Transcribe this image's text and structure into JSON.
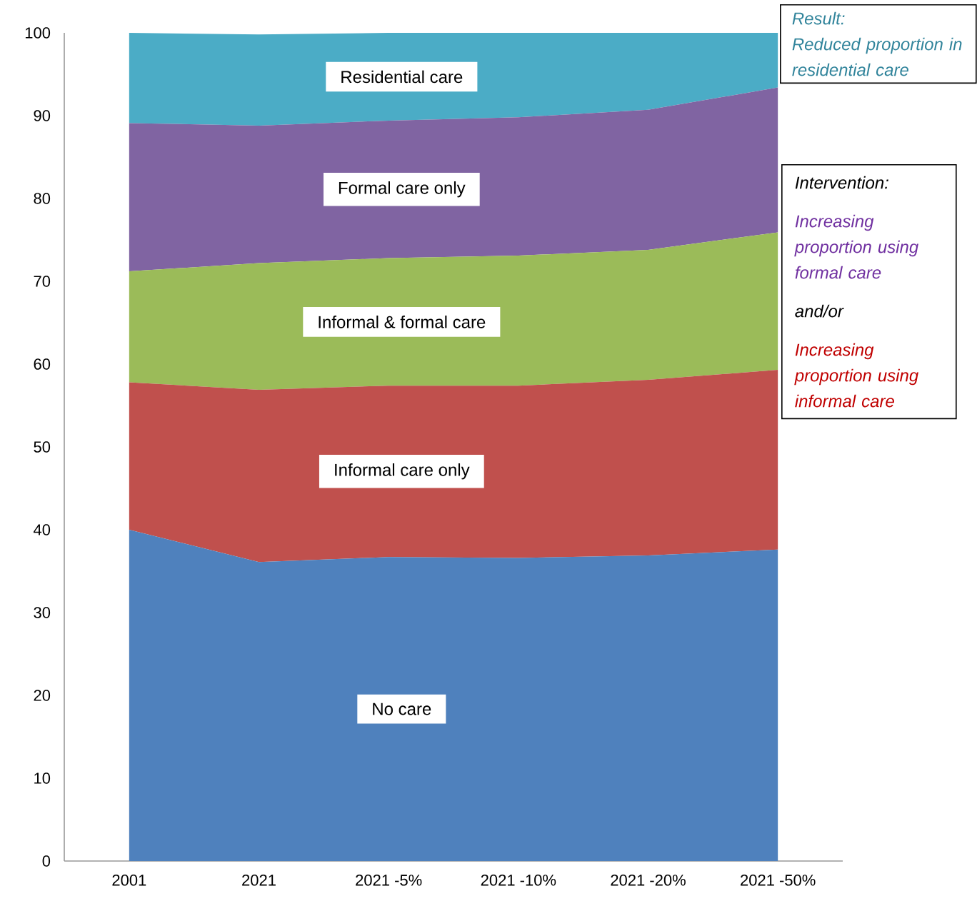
{
  "chart_data": {
    "type": "area",
    "stacked": true,
    "categories": [
      "2001",
      "2021",
      "2021 -5%",
      "2021 -10%",
      "2021 -20%",
      "2021 -50%"
    ],
    "series": [
      {
        "name": "No care",
        "color": "#4f81bd",
        "values": [
          40,
          36.1,
          36.7,
          36.6,
          36.9,
          37.6
        ]
      },
      {
        "name": "Informal care only",
        "color": "#c0504d",
        "values": [
          17.8,
          20.8,
          20.7,
          20.8,
          21.2,
          21.7
        ]
      },
      {
        "name": "Informal & formal care",
        "color": "#9bbb59",
        "values": [
          13.4,
          15.3,
          15.4,
          15.7,
          15.7,
          16.6
        ]
      },
      {
        "name": "Formal care only",
        "color": "#8064a2",
        "values": [
          17.9,
          16.6,
          16.6,
          16.7,
          16.9,
          17.5
        ]
      },
      {
        "name": "Residential care",
        "color": "#4bacc6",
        "values": [
          10.9,
          11.0,
          10.6,
          10.2,
          9.3,
          6.6
        ]
      }
    ],
    "ylim": [
      0,
      100
    ],
    "yticks": [
      0,
      10,
      20,
      30,
      40,
      50,
      60,
      70,
      80,
      90,
      100
    ],
    "annotations": [
      "Result:",
      "Reduced proportion in residential care",
      "Intervention:",
      "Increasing proportion using formal care",
      "and/or",
      "Increasing proportion using informal care"
    ]
  }
}
